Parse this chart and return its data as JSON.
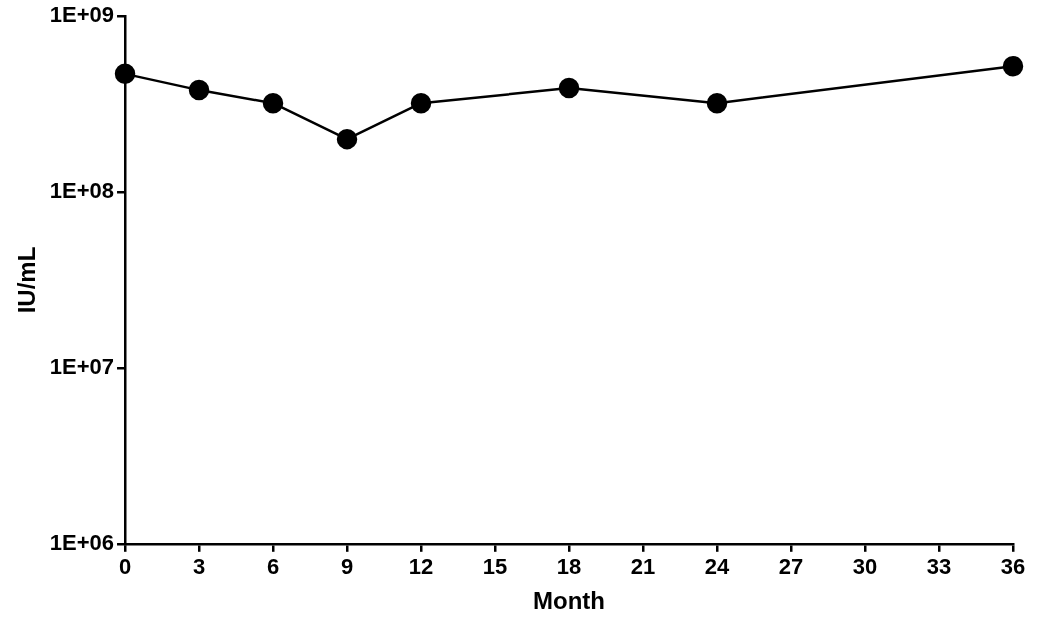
{
  "chart_data": {
    "type": "line",
    "xlabel": "Month",
    "ylabel": "IU/mL",
    "x": [
      0,
      3,
      6,
      9,
      12,
      18,
      24,
      36
    ],
    "series": [
      {
        "color": "#000000",
        "values": [
          470000000,
          380000000,
          320000000,
          200000000,
          320000000,
          390000000,
          320000000,
          520000000
        ]
      }
    ],
    "xlim": [
      0,
      36
    ],
    "xticks": [
      0,
      3,
      6,
      9,
      12,
      15,
      18,
      21,
      24,
      27,
      30,
      33,
      36
    ],
    "ylim": [
      1000000,
      1000000000
    ],
    "yticks": [
      {
        "value": 1000000,
        "label": "1E+06"
      },
      {
        "value": 10000000,
        "label": "1E+07"
      },
      {
        "value": 100000000,
        "label": "1E+08"
      },
      {
        "value": 1000000000,
        "label": "1E+09"
      }
    ],
    "log": true,
    "grid": false,
    "legend": false,
    "marker": "circle",
    "line_style": "solid"
  }
}
